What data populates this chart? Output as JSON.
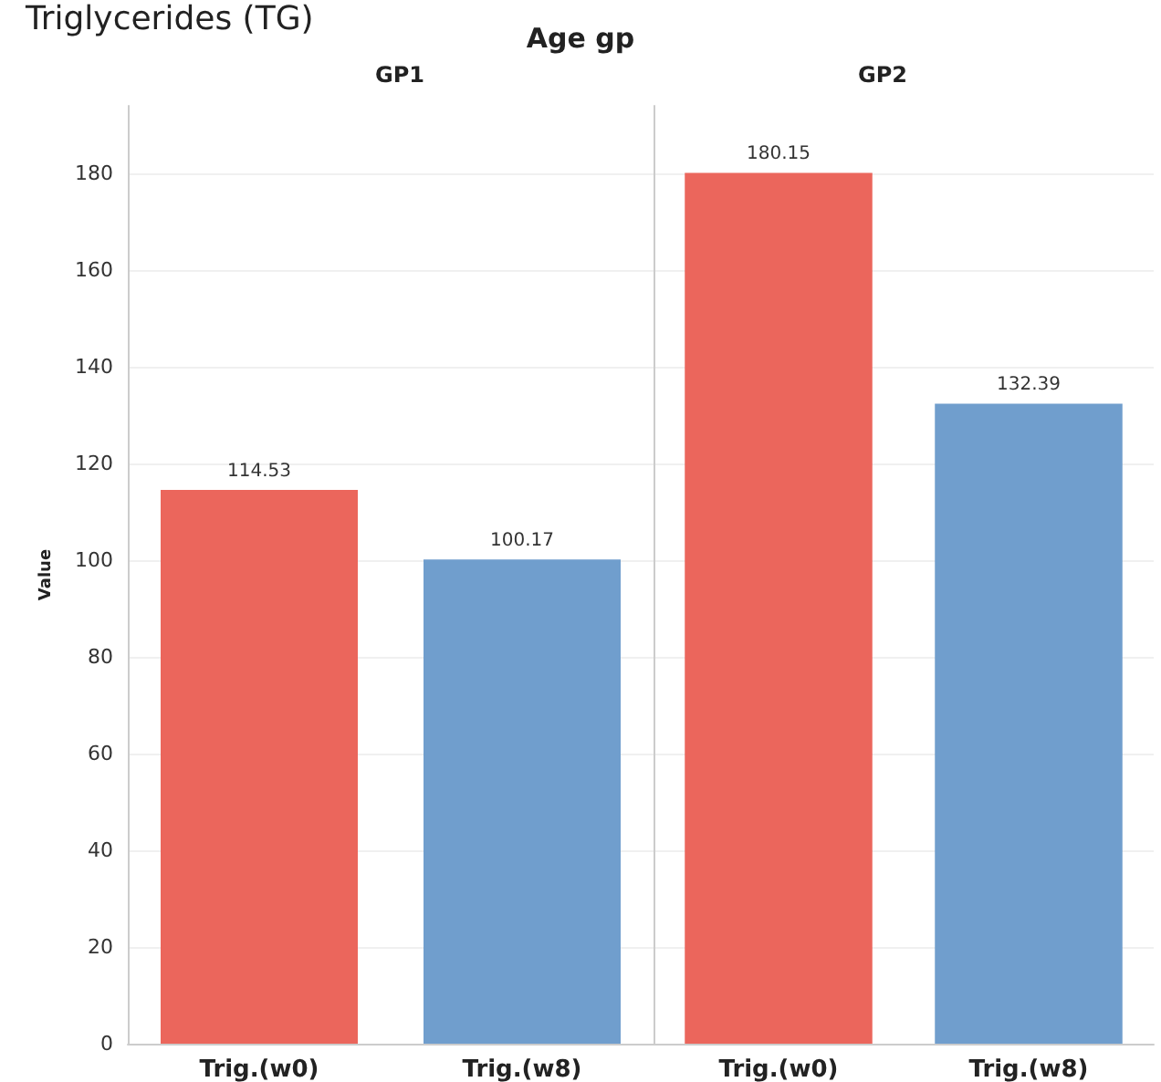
{
  "chart_data": [
    {
      "type": "bar",
      "title": "GP1",
      "annotations": [
        "Triglycerides (TG)",
        "Age gp"
      ],
      "ylabel": "Value",
      "categories": [
        "Trig.(w0)",
        "Trig.(w8)"
      ],
      "values": [
        114.53,
        100.17
      ],
      "colors": [
        "#eb665c",
        "#709ecd"
      ],
      "ylim": [
        0,
        194
      ],
      "yticks": [
        0,
        20,
        40,
        60,
        80,
        100,
        120,
        140,
        160,
        180
      ],
      "grid": "y",
      "data_labels": true
    },
    {
      "type": "bar",
      "title": "GP2",
      "categories": [
        "Trig.(w0)",
        "Trig.(w8)"
      ],
      "values": [
        180.15,
        132.39
      ],
      "colors": [
        "#eb665c",
        "#709ecd"
      ],
      "ylim": [
        0,
        194
      ],
      "yticks": [
        0,
        20,
        40,
        60,
        80,
        100,
        120,
        140,
        160,
        180
      ],
      "grid": "y",
      "data_labels": true,
      "tick_labels": "x"
    }
  ]
}
